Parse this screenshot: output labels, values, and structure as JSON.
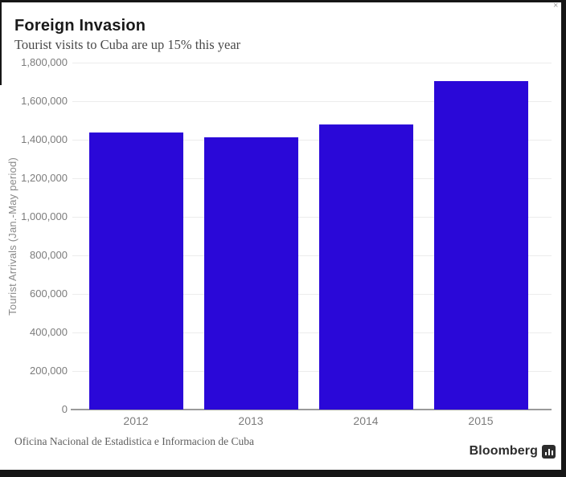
{
  "header": {
    "title": "Foreign Invasion",
    "subtitle": "Tourist visits to Cuba are up 15% this year"
  },
  "chart_data": {
    "type": "bar",
    "categories": [
      "2012",
      "2013",
      "2014",
      "2015"
    ],
    "values": [
      1437000,
      1413000,
      1479000,
      1704000
    ],
    "title": "Foreign Invasion",
    "subtitle": "Tourist visits to Cuba are up 15% this year",
    "xlabel": "",
    "ylabel": "Tourist Arrivals (Jan.-May period)",
    "ylim": [
      0,
      1800000
    ],
    "ytick_step": 200000,
    "ytick_labels": [
      "0",
      "200,000",
      "400,000",
      "600,000",
      "800,000",
      "1,000,000",
      "1,200,000",
      "1,400,000",
      "1,600,000",
      "1,800,000"
    ],
    "grid": true,
    "legend": false,
    "bar_color": "#2a08d8"
  },
  "footer": {
    "source": "Oficina Nacional de Estadistica e Informacion de Cuba",
    "brand": "Bloomberg"
  },
  "window": {
    "close_glyph": "×"
  },
  "colors": {
    "bar": "#2a08d8",
    "grid": "#ececec",
    "axis_line": "#9a9a9a",
    "tick_text": "#7c7c7c",
    "title_text": "#1a1a1a",
    "subtitle_text": "#4a4a4a",
    "source_text": "#5f5f5f",
    "frame": "#161616"
  }
}
